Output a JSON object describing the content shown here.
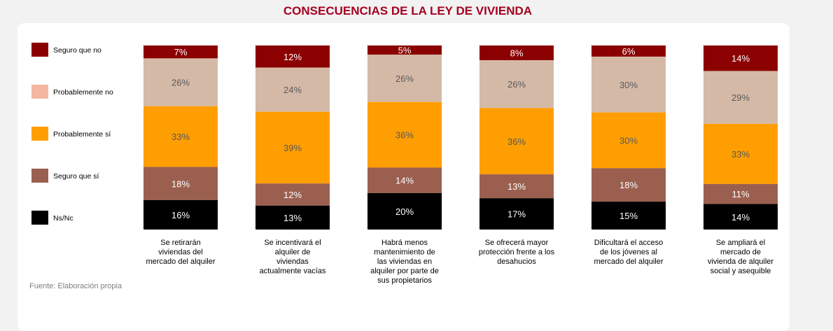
{
  "chart_data": {
    "type": "bar",
    "stacked": true,
    "title": "CONSECUENCIAS DE LA LEY DE VIVIENDA",
    "categories": [
      [
        "Se retirarán",
        "viviendas del",
        "mercado del alquiler"
      ],
      [
        "Se incentivará el",
        "alquiler de",
        "viviendas",
        "actualmente vacías"
      ],
      [
        "Habrá menos",
        "mantenimiento de",
        "las viviendas en",
        "alquiler por parte de",
        "sus propietarios"
      ],
      [
        "Se ofrecerá mayor",
        "protección frente  a los",
        "desahucios"
      ],
      [
        "Dificultará el acceso",
        "de los jóvenes al",
        "mercado del alquiler"
      ],
      [
        "Se ampliará el",
        "mercado de",
        "vivienda de alquiler",
        "social y asequible"
      ]
    ],
    "series": [
      {
        "name": "Seguro que no",
        "color": "#8b0000",
        "values": [
          7,
          12,
          5,
          8,
          6,
          14
        ]
      },
      {
        "name": "Probablemente no",
        "color": "#d5b9a7",
        "values": [
          26,
          24,
          26,
          26,
          30,
          29
        ]
      },
      {
        "name": "Probablemente sí",
        "color": "#ff9e00",
        "values": [
          33,
          39,
          36,
          36,
          30,
          33
        ]
      },
      {
        "name": "Seguro que sí",
        "color": "#9b5f4f",
        "values": [
          18,
          12,
          14,
          13,
          18,
          11
        ]
      },
      {
        "name": "Ns/Nc",
        "color": "#000000",
        "values": [
          16,
          13,
          20,
          17,
          15,
          14
        ]
      }
    ],
    "legend_labels": [
      "Seguro que no",
      "Probablemente no",
      "Probablemente sí",
      "Seguro que sí",
      "Ns/Nc"
    ],
    "legend_colors": [
      "#8b0000",
      "#f4b6a0",
      "#ff9e00",
      "#9b5f4f",
      "#000000"
    ],
    "value_suffix": "%",
    "ylim": [
      0,
      100
    ]
  },
  "footer": {
    "source": "Fuente: Elaboración propia"
  }
}
